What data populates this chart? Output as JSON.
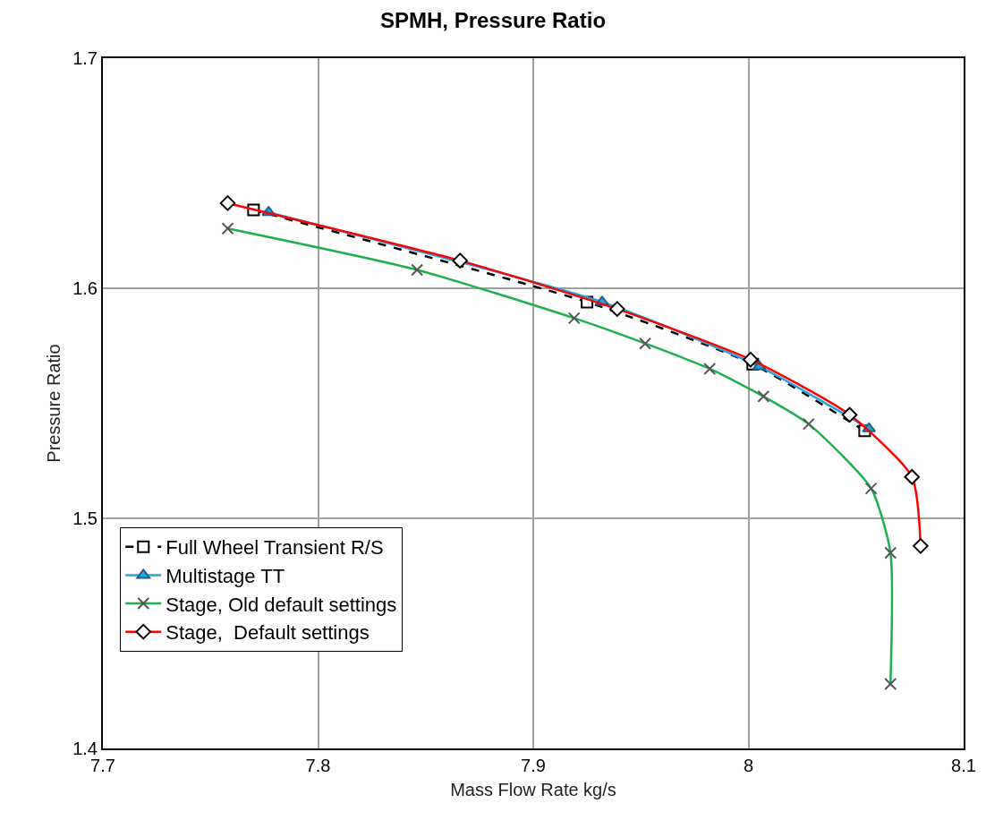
{
  "chart_data": {
    "type": "line",
    "title": "SPMH, Pressure Ratio",
    "xlabel": "Mass Flow Rate kg/s",
    "ylabel": "Pressure Ratio",
    "xlim": [
      7.7,
      8.1
    ],
    "xticks": [
      7.7,
      7.8,
      7.9,
      8,
      8.1
    ],
    "ylim": [
      1.4,
      1.7
    ],
    "yticks": [
      1.4,
      1.5,
      1.6,
      1.7
    ],
    "grid": true,
    "legend": "bottom left",
    "series": [
      {
        "name": "Full Wheel Transient R/S",
        "color": "#000000",
        "marker": "square",
        "line_style": "dashed",
        "x": [
          7.77,
          7.925,
          8.002,
          8.054
        ],
        "values": [
          1.634,
          1.594,
          1.567,
          1.538
        ]
      },
      {
        "name": "Multistage TT",
        "color": "#1fa8e0",
        "marker": "triangle",
        "line_style": "solid",
        "x": [
          7.777,
          7.932,
          8.005,
          8.056
        ],
        "values": [
          1.633,
          1.594,
          1.566,
          1.539
        ]
      },
      {
        "name": "Stage, Old default settings",
        "color": "#1db050",
        "marker": "cross",
        "line_style": "solid",
        "x": [
          7.758,
          7.846,
          7.919,
          7.952,
          7.982,
          8.007,
          8.028,
          8.057,
          8.066,
          8.066
        ],
        "values": [
          1.626,
          1.608,
          1.587,
          1.576,
          1.565,
          1.553,
          1.541,
          1.513,
          1.485,
          1.428
        ]
      },
      {
        "name": "Stage,  Default settings",
        "color": "#ff0000",
        "marker": "diamond",
        "line_style": "solid",
        "x": [
          7.758,
          7.866,
          7.939,
          8.001,
          8.047,
          8.076,
          8.08
        ],
        "values": [
          1.637,
          1.612,
          1.591,
          1.569,
          1.545,
          1.518,
          1.488
        ]
      }
    ]
  }
}
